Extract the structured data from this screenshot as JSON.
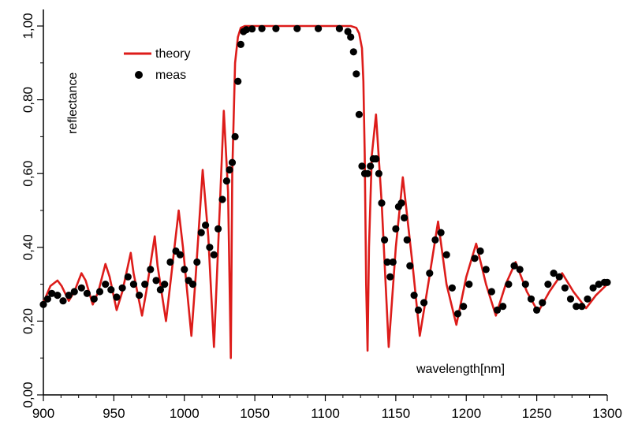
{
  "chart_data": {
    "type": "line",
    "title": "",
    "xlabel": "wavelength[nm]",
    "ylabel": "reflectance",
    "xlim": [
      900,
      1300
    ],
    "ylim": [
      0,
      1
    ],
    "x_ticks": [
      "900",
      "950",
      "1000",
      "1050",
      "1100",
      "1150",
      "1200",
      "1250",
      "1300"
    ],
    "y_ticks": [
      "0,00",
      "0,20",
      "0,40",
      "0,60",
      "0,80",
      "1,00"
    ],
    "legend_position": "top-left",
    "grid": false,
    "series": [
      {
        "name": "theory",
        "style": "line",
        "color": "#dd1c1a",
        "x": [
          900,
          905,
          910,
          913,
          918,
          922,
          927,
          930,
          935,
          939,
          944,
          947,
          952,
          956,
          962,
          964,
          970,
          973,
          979,
          981,
          987,
          990,
          996,
          999,
          1005,
          1008,
          1013,
          1017,
          1021,
          1024,
          1028,
          1031,
          1033,
          1034,
          1036,
          1038,
          1040,
          1043,
          1046,
          1050,
          1060,
          1080,
          1100,
          1110,
          1118,
          1122,
          1124,
          1126,
          1127,
          1128,
          1129,
          1130,
          1131,
          1133,
          1136,
          1140,
          1145,
          1150,
          1155,
          1162,
          1167,
          1173,
          1180,
          1186,
          1193,
          1200,
          1207,
          1214,
          1221,
          1228,
          1235,
          1243,
          1251,
          1259,
          1268,
          1276,
          1285,
          1292,
          1300
        ],
        "y": [
          0.25,
          0.295,
          0.31,
          0.295,
          0.255,
          0.28,
          0.33,
          0.31,
          0.245,
          0.28,
          0.355,
          0.32,
          0.23,
          0.28,
          0.385,
          0.33,
          0.215,
          0.28,
          0.43,
          0.35,
          0.2,
          0.3,
          0.5,
          0.4,
          0.16,
          0.32,
          0.61,
          0.43,
          0.13,
          0.4,
          0.77,
          0.55,
          0.1,
          0.6,
          0.9,
          0.97,
          0.995,
          1.0,
          1.0,
          1.0,
          1.0,
          1.0,
          1.0,
          1.0,
          1.0,
          0.995,
          0.98,
          0.94,
          0.85,
          0.65,
          0.3,
          0.12,
          0.4,
          0.65,
          0.76,
          0.52,
          0.13,
          0.4,
          0.59,
          0.35,
          0.16,
          0.3,
          0.47,
          0.3,
          0.19,
          0.32,
          0.41,
          0.3,
          0.215,
          0.3,
          0.36,
          0.28,
          0.225,
          0.28,
          0.33,
          0.28,
          0.235,
          0.27,
          0.3
        ]
      },
      {
        "name": "meas",
        "style": "markers",
        "color": "#000000",
        "x": [
          900,
          903,
          906,
          910,
          914,
          918,
          922,
          927,
          931,
          936,
          940,
          944,
          948,
          952,
          956,
          960,
          964,
          968,
          972,
          976,
          980,
          983,
          986,
          990,
          994,
          997,
          1000,
          1003,
          1006,
          1009,
          1012,
          1015,
          1018,
          1021,
          1024,
          1027,
          1030,
          1032,
          1034,
          1036,
          1038,
          1040,
          1042,
          1044,
          1048,
          1055,
          1065,
          1080,
          1095,
          1110,
          1116,
          1118,
          1120,
          1122,
          1124,
          1126,
          1128,
          1130,
          1132,
          1134,
          1136,
          1138,
          1140,
          1142,
          1144,
          1146,
          1148,
          1150,
          1152,
          1154,
          1156,
          1158,
          1160,
          1163,
          1166,
          1170,
          1174,
          1178,
          1182,
          1186,
          1190,
          1194,
          1198,
          1202,
          1206,
          1210,
          1214,
          1218,
          1222,
          1226,
          1230,
          1234,
          1238,
          1242,
          1246,
          1250,
          1254,
          1258,
          1262,
          1266,
          1270,
          1274,
          1278,
          1282,
          1286,
          1290,
          1294,
          1298,
          1300
        ],
        "y": [
          0.245,
          0.26,
          0.275,
          0.27,
          0.255,
          0.27,
          0.28,
          0.29,
          0.275,
          0.26,
          0.28,
          0.3,
          0.285,
          0.265,
          0.29,
          0.32,
          0.3,
          0.27,
          0.3,
          0.34,
          0.31,
          0.285,
          0.3,
          0.36,
          0.39,
          0.38,
          0.34,
          0.31,
          0.3,
          0.36,
          0.44,
          0.46,
          0.4,
          0.38,
          0.45,
          0.53,
          0.58,
          0.61,
          0.63,
          0.7,
          0.85,
          0.95,
          0.985,
          0.99,
          0.992,
          0.993,
          0.993,
          0.993,
          0.993,
          0.993,
          0.985,
          0.97,
          0.93,
          0.87,
          0.76,
          0.62,
          0.6,
          0.6,
          0.62,
          0.64,
          0.64,
          0.6,
          0.52,
          0.42,
          0.36,
          0.32,
          0.36,
          0.45,
          0.51,
          0.52,
          0.48,
          0.42,
          0.35,
          0.27,
          0.23,
          0.25,
          0.33,
          0.42,
          0.44,
          0.38,
          0.29,
          0.22,
          0.24,
          0.3,
          0.37,
          0.39,
          0.34,
          0.28,
          0.23,
          0.24,
          0.3,
          0.35,
          0.34,
          0.3,
          0.26,
          0.23,
          0.25,
          0.3,
          0.33,
          0.32,
          0.29,
          0.26,
          0.24,
          0.24,
          0.26,
          0.29,
          0.3,
          0.305,
          0.305
        ]
      }
    ]
  }
}
